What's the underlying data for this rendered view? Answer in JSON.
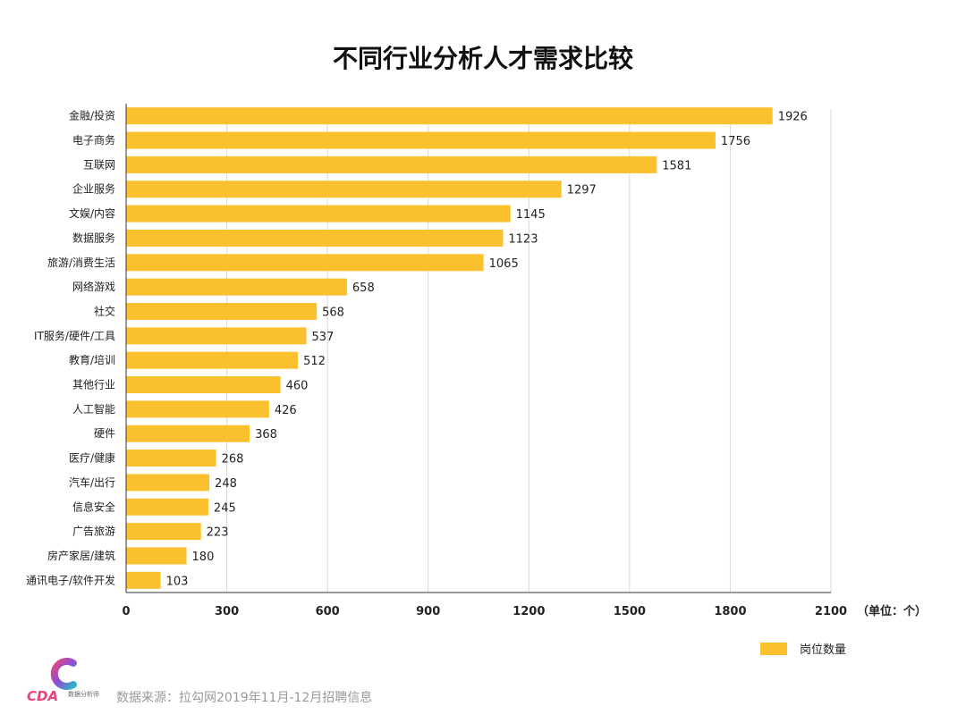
{
  "colors": {
    "bar": "#FBC02D",
    "grid": "#d9d9d9",
    "axis": "#333333"
  },
  "unit_label": "（单位：个）",
  "legend_label": "岗位数量",
  "source_text": "数据来源：拉勾网2019年11月-12月招聘信息",
  "logo": {
    "brand": "CDA",
    "sub": "数据分析师"
  },
  "chart_data": {
    "type": "bar",
    "orientation": "horizontal",
    "title": "不同行业分析人才需求比较",
    "categories": [
      "金融/投资",
      "电子商务",
      "互联网",
      "企业服务",
      "文娱/内容",
      "数据服务",
      "旅游/消费生活",
      "网络游戏",
      "社交",
      "IT服务/硬件/工具",
      "教育/培训",
      "其他行业",
      "人工智能",
      "硬件",
      "医疗/健康",
      "汽车/出行",
      "信息安全",
      "广告旅游",
      "房产家居/建筑",
      "通讯电子/软件开发"
    ],
    "series": [
      {
        "name": "岗位数量",
        "values": [
          1926,
          1756,
          1581,
          1297,
          1145,
          1123,
          1065,
          658,
          568,
          537,
          512,
          460,
          426,
          368,
          268,
          248,
          245,
          223,
          180,
          103
        ]
      }
    ],
    "xlim": [
      0,
      2100
    ],
    "xticks": [
      0,
      300,
      600,
      900,
      1200,
      1500,
      1800,
      2100
    ],
    "grid": true,
    "legend": "bottom-right"
  }
}
